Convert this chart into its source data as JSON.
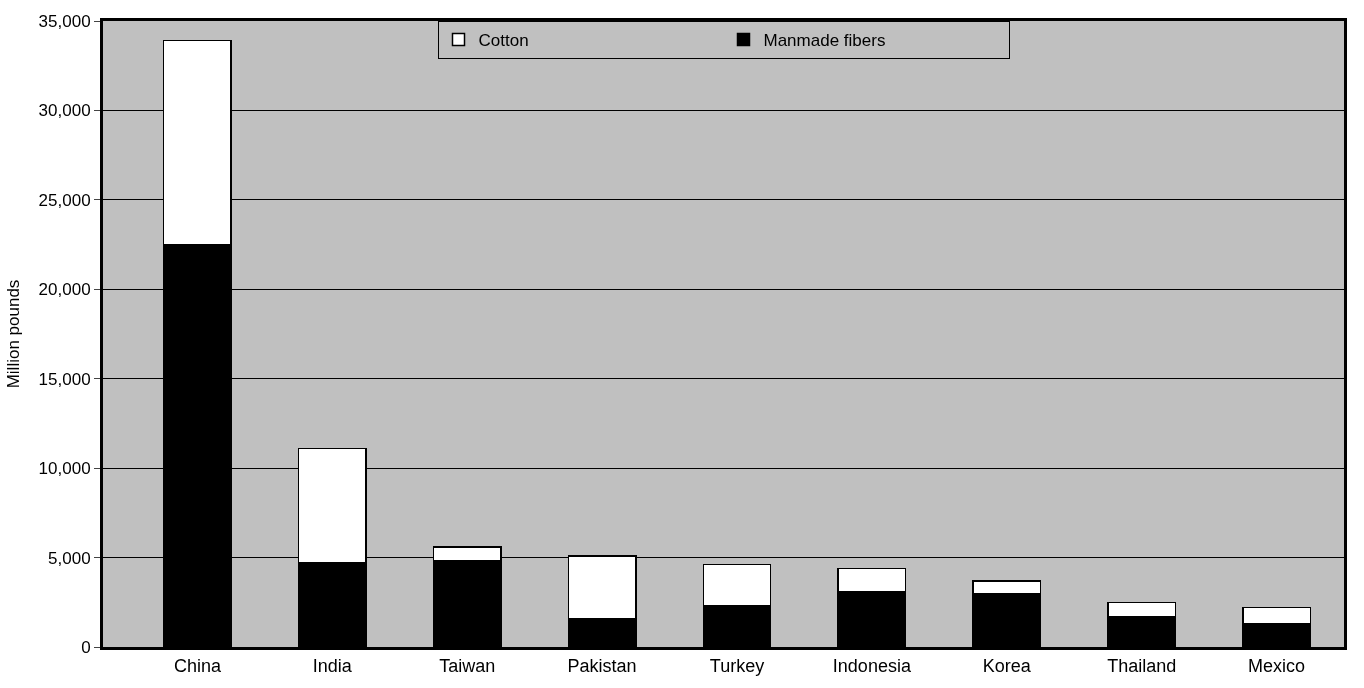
{
  "chart_data": {
    "type": "bar",
    "ylabel": "Million pounds",
    "stacked": true,
    "categories": [
      "China",
      "India",
      "Taiwan",
      "Pakistan",
      "Turkey",
      "Indonesia",
      "Korea",
      "Thailand",
      "Mexico"
    ],
    "series": [
      {
        "name": "Manmade fibers",
        "color": "#000000",
        "values": [
          22500,
          4700,
          4800,
          1600,
          2300,
          3100,
          3000,
          1700,
          1300
        ]
      },
      {
        "name": "Cotton",
        "color": "#ffffff",
        "values": [
          11400,
          6400,
          800,
          3500,
          2300,
          1300,
          700,
          800,
          900
        ]
      }
    ],
    "ylim": [
      0,
      35000
    ],
    "yticks": [
      {
        "value": 0,
        "label": "0"
      },
      {
        "value": 5000,
        "label": "5,000"
      },
      {
        "value": 10000,
        "label": "10,000"
      },
      {
        "value": 15000,
        "label": "15,000"
      },
      {
        "value": 20000,
        "label": "20,000"
      },
      {
        "value": 25000,
        "label": "25,000"
      },
      {
        "value": 30000,
        "label": "30,000"
      },
      {
        "value": 35000,
        "label": "35,000"
      }
    ],
    "grid": "y",
    "legend": "top"
  }
}
